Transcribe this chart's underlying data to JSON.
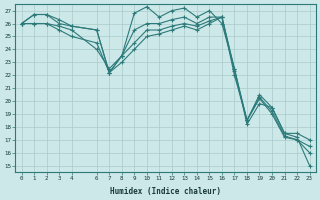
{
  "xlabel": "Humidex (Indice chaleur)",
  "xlim": [
    -0.5,
    23.5
  ],
  "ylim": [
    14.5,
    27.5
  ],
  "yticks": [
    15,
    16,
    17,
    18,
    19,
    20,
    21,
    22,
    23,
    24,
    25,
    26,
    27
  ],
  "xticks": [
    0,
    1,
    2,
    3,
    4,
    6,
    7,
    8,
    9,
    10,
    11,
    12,
    13,
    14,
    15,
    16,
    17,
    18,
    19,
    20,
    21,
    22,
    23
  ],
  "bg_color": "#cce8e8",
  "line_color": "#2d7a7a",
  "grid_color": "#aacccc",
  "series": [
    {
      "x": [
        0,
        1,
        2,
        3,
        4,
        6,
        7,
        8,
        9,
        10,
        11,
        12,
        13,
        14,
        15,
        16,
        17,
        18,
        19,
        20,
        21,
        22,
        23
      ],
      "y": [
        26.0,
        26.7,
        26.7,
        26.0,
        25.8,
        25.5,
        22.2,
        23.5,
        26.8,
        27.3,
        26.5,
        27.0,
        27.2,
        26.5,
        27.0,
        26.0,
        22.5,
        18.2,
        19.8,
        19.5,
        17.5,
        17.2,
        15.0
      ]
    },
    {
      "x": [
        0,
        1,
        2,
        3,
        4,
        6,
        7,
        8,
        9,
        10,
        11,
        12,
        13,
        14,
        15,
        16,
        17,
        18,
        19,
        20,
        21,
        22,
        23
      ],
      "y": [
        26.0,
        26.7,
        26.7,
        26.3,
        25.8,
        25.5,
        22.2,
        23.5,
        25.5,
        26.0,
        26.0,
        26.3,
        26.5,
        26.0,
        26.5,
        26.5,
        22.5,
        18.5,
        20.5,
        19.5,
        17.5,
        17.5,
        17.0
      ]
    },
    {
      "x": [
        0,
        1,
        2,
        3,
        4,
        6,
        7,
        8,
        9,
        10,
        11,
        12,
        13,
        14,
        15,
        16,
        17,
        18,
        19,
        20,
        21,
        22,
        23
      ],
      "y": [
        26.0,
        26.0,
        26.0,
        25.5,
        25.0,
        24.5,
        22.2,
        23.0,
        24.0,
        25.0,
        25.2,
        25.5,
        25.8,
        25.5,
        26.0,
        26.5,
        22.3,
        18.5,
        20.3,
        19.2,
        17.3,
        17.0,
        16.5
      ]
    },
    {
      "x": [
        0,
        1,
        2,
        3,
        4,
        6,
        7,
        8,
        9,
        10,
        11,
        12,
        13,
        14,
        15,
        16,
        17,
        18,
        19,
        20,
        21,
        22,
        23
      ],
      "y": [
        26.0,
        26.0,
        26.0,
        25.8,
        25.5,
        24.0,
        22.5,
        23.5,
        24.5,
        25.5,
        25.5,
        25.8,
        26.0,
        25.8,
        26.2,
        26.5,
        22.0,
        18.5,
        20.2,
        19.0,
        17.2,
        17.0,
        16.0
      ]
    }
  ]
}
